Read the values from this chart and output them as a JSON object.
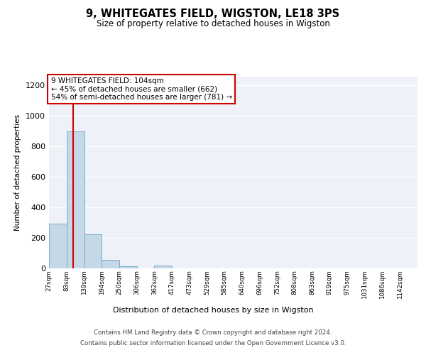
{
  "title": "9, WHITEGATES FIELD, WIGSTON, LE18 3PS",
  "subtitle": "Size of property relative to detached houses in Wigston",
  "xlabel": "Distribution of detached houses by size in Wigston",
  "ylabel": "Number of detached properties",
  "bar_edges": [
    27,
    83,
    139,
    194,
    250,
    306,
    362,
    417,
    473,
    529,
    585,
    640,
    696,
    752,
    808,
    863,
    919,
    975,
    1031,
    1086,
    1142
  ],
  "bar_heights": [
    290,
    900,
    220,
    55,
    12,
    0,
    15,
    0,
    0,
    0,
    0,
    0,
    0,
    0,
    0,
    0,
    0,
    0,
    0,
    0,
    0
  ],
  "bar_color": "#c5d8e8",
  "bar_edge_color": "#7aaec8",
  "property_size": 104,
  "property_label": "9 WHITEGATES FIELD: 104sqm",
  "annotation_line1": "← 45% of detached houses are smaller (662)",
  "annotation_line2": "54% of semi-detached houses are larger (781) →",
  "vline_color": "#cc0000",
  "ylim": [
    0,
    1260
  ],
  "yticks": [
    0,
    200,
    400,
    600,
    800,
    1000,
    1200
  ],
  "background_color": "#eef2f8",
  "grid_color": "#ffffff",
  "annotation_box_color": "#ffffff",
  "annotation_box_edge_color": "#cc0000",
  "footer_line1": "Contains HM Land Registry data © Crown copyright and database right 2024.",
  "footer_line2": "Contains public sector information licensed under the Open Government Licence v3.0.",
  "tick_labels": [
    "27sqm",
    "83sqm",
    "139sqm",
    "194sqm",
    "250sqm",
    "306sqm",
    "362sqm",
    "417sqm",
    "473sqm",
    "529sqm",
    "585sqm",
    "640sqm",
    "696sqm",
    "752sqm",
    "808sqm",
    "863sqm",
    "919sqm",
    "975sqm",
    "1031sqm",
    "1086sqm",
    "1142sqm"
  ]
}
